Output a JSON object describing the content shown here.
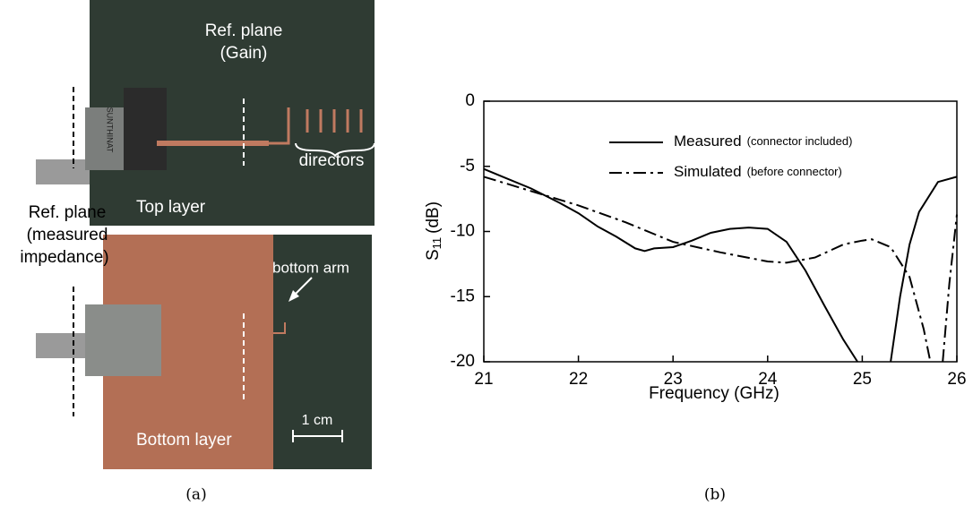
{
  "photo": {
    "ref_plane_gain": [
      "Ref. plane",
      "(Gain)"
    ],
    "directors": "directors",
    "top_layer": "Top layer",
    "ref_plane_impedance": [
      "Ref. plane",
      "(measured",
      "impedance)"
    ],
    "bottom_arm": "bottom arm",
    "bottom_layer": "Bottom layer",
    "scale": "1 cm",
    "connector_text": "SUNTHINAT"
  },
  "panel_labels": [
    "(a)",
    "(b)"
  ],
  "chart_data": {
    "type": "line",
    "xlabel": "Frequency (GHz)",
    "ylabel": "S",
    "ylabel_sub": "11",
    "ylabel_unit": "(dB)",
    "xlim": [
      21,
      26
    ],
    "xticks": [
      21,
      22,
      23,
      24,
      25,
      26
    ],
    "ylim": [
      -20,
      0
    ],
    "yticks": [
      0,
      -5,
      -10,
      -15,
      -20
    ],
    "grid": false,
    "series": [
      {
        "name": "Measured",
        "detail": "(connector included)",
        "color": "#000000",
        "dash": "solid",
        "x": [
          21,
          21.2,
          21.5,
          21.8,
          22,
          22.2,
          22.4,
          22.6,
          22.7,
          22.8,
          23,
          23.2,
          23.4,
          23.6,
          23.8,
          24,
          24.2,
          24.4,
          24.6,
          24.8,
          24.95,
          25.1,
          25.3,
          25.4,
          25.5,
          25.6,
          25.8,
          26
        ],
        "values": [
          -5.2,
          -5.8,
          -6.7,
          -7.8,
          -8.6,
          -9.6,
          -10.4,
          -11.3,
          -11.5,
          -11.3,
          -11.2,
          -10.7,
          -10.1,
          -9.8,
          -9.7,
          -9.8,
          -10.8,
          -13,
          -15.7,
          -18.3,
          -20,
          null,
          -20,
          -15,
          -11,
          -8.5,
          -6.2,
          -5.8
        ]
      },
      {
        "name": "Simulated",
        "detail": "(before connector)",
        "color": "#000000",
        "dash": "dashdot",
        "x": [
          21,
          21.5,
          22,
          22.5,
          23,
          23.5,
          24,
          24.2,
          24.5,
          24.8,
          25,
          25.1,
          25.3,
          25.5,
          25.65,
          25.72,
          25.8,
          25.85,
          25.92,
          26
        ],
        "values": [
          -5.8,
          -6.9,
          -8.0,
          -9.3,
          -10.8,
          -11.6,
          -12.3,
          -12.4,
          -12.0,
          -11.0,
          -10.7,
          -10.6,
          -11.2,
          -13.5,
          -17.5,
          -20,
          null,
          -20,
          -14,
          -8.7
        ]
      }
    ]
  }
}
